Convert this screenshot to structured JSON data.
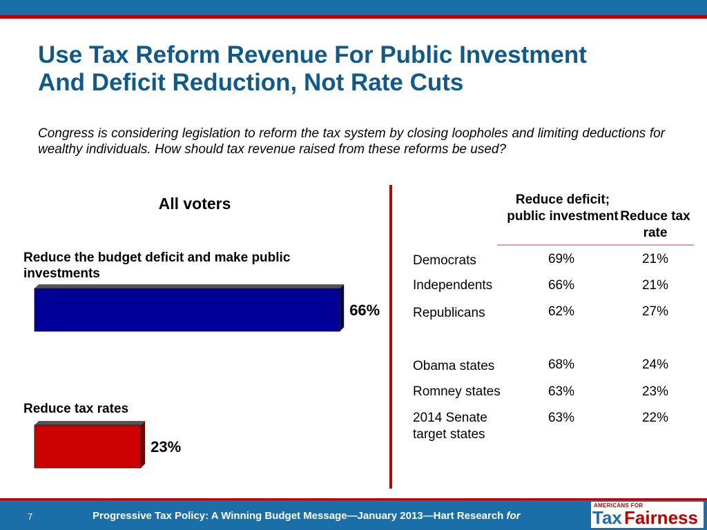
{
  "title": {
    "line1": "Use Tax Reform Revenue For Public Investment",
    "line2": "And Deficit Reduction, Not Rate Cuts"
  },
  "question": "Congress is considering legislation to reform the tax system by closing loopholes and limiting deductions for wealthy individuals.  How should tax revenue raised from these reforms be used?",
  "chart_data": {
    "type": "bar",
    "title": "All voters",
    "categories": [
      "Reduce the budget deficit and make public investments",
      "Reduce tax rates"
    ],
    "values": [
      66,
      23
    ],
    "value_labels": [
      "66%",
      "23%"
    ],
    "colors": [
      "#000099",
      "#cc0000"
    ],
    "xlim": [
      0,
      100
    ]
  },
  "table": {
    "header_col1": "Reduce deficit; public investment",
    "header_col2": "Reduce tax rate",
    "rows": [
      {
        "label": "Democrats",
        "v1": "69%",
        "v2": "21%"
      },
      {
        "label": "Independents",
        "v1": "66%",
        "v2": "21%"
      },
      {
        "label": "Republicans",
        "v1": "62%",
        "v2": "27%"
      },
      {
        "label": "Obama states",
        "v1": "68%",
        "v2": "24%"
      },
      {
        "label": "Romney states",
        "v1": "63%",
        "v2": "23%"
      },
      {
        "label": "2014 Senate target states",
        "v1": "63%",
        "v2": "22%"
      }
    ]
  },
  "footer": {
    "page_number": "7",
    "text": "Progressive Tax Policy:   A Winning Budget Message—January 2013—Hart Research",
    "for": "for"
  },
  "logo": {
    "small": "AMERICANS FOR",
    "tax": "Tax",
    "fairness": "Fairness"
  }
}
